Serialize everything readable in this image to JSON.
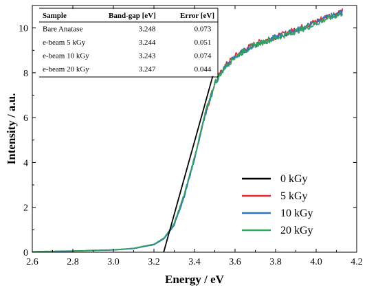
{
  "chart_data": {
    "type": "line",
    "xlabel": "Energy / eV",
    "ylabel": "Intensity / a.u.",
    "xlim": [
      2.6,
      4.2
    ],
    "ylim": [
      0,
      11
    ],
    "x_ticks": [
      2.6,
      2.8,
      3.0,
      3.2,
      3.4,
      3.6,
      3.8,
      4.0,
      4.2
    ],
    "x_tick_labels": [
      "2.6",
      "2.8",
      "3.0",
      "3.2",
      "3.4",
      "3.6",
      "3.8",
      "4.0",
      "4.2"
    ],
    "y_ticks": [
      0,
      2,
      4,
      6,
      8,
      10
    ],
    "y_tick_labels": [
      "0",
      "2",
      "4",
      "6",
      "8",
      "10"
    ],
    "grid": false,
    "legend_position": "bottom-right",
    "series": [
      {
        "name": "0 kGy",
        "color": "#000000",
        "style": "fit-line",
        "points": [
          [
            3.248,
            0
          ],
          [
            3.49,
            7.85
          ]
        ]
      },
      {
        "name": "5 kGy",
        "color": "#e8262b",
        "style": "spectrum",
        "points": [
          [
            2.6,
            0.02
          ],
          [
            2.8,
            0.05
          ],
          [
            3.0,
            0.1
          ],
          [
            3.1,
            0.17
          ],
          [
            3.2,
            0.35
          ],
          [
            3.25,
            0.62
          ],
          [
            3.3,
            1.25
          ],
          [
            3.35,
            2.55
          ],
          [
            3.4,
            4.2
          ],
          [
            3.45,
            6.05
          ],
          [
            3.5,
            7.55
          ],
          [
            3.55,
            8.3
          ],
          [
            3.6,
            8.75
          ],
          [
            3.65,
            9.05
          ],
          [
            3.7,
            9.3
          ],
          [
            3.75,
            9.45
          ],
          [
            3.8,
            9.6
          ],
          [
            3.85,
            9.75
          ],
          [
            3.9,
            9.95
          ],
          [
            3.95,
            10.1
          ],
          [
            4.0,
            10.3
          ],
          [
            4.05,
            10.5
          ],
          [
            4.1,
            10.65
          ],
          [
            4.13,
            10.75
          ]
        ]
      },
      {
        "name": "10 kGy",
        "color": "#2a73c9",
        "style": "spectrum",
        "points": [
          [
            2.6,
            0.02
          ],
          [
            2.8,
            0.05
          ],
          [
            3.0,
            0.1
          ],
          [
            3.1,
            0.16
          ],
          [
            3.2,
            0.33
          ],
          [
            3.25,
            0.6
          ],
          [
            3.3,
            1.2
          ],
          [
            3.35,
            2.5
          ],
          [
            3.4,
            4.15
          ],
          [
            3.45,
            6.0
          ],
          [
            3.5,
            7.5
          ],
          [
            3.55,
            8.25
          ],
          [
            3.6,
            8.7
          ],
          [
            3.65,
            9.0
          ],
          [
            3.7,
            9.25
          ],
          [
            3.75,
            9.42
          ],
          [
            3.8,
            9.58
          ],
          [
            3.85,
            9.72
          ],
          [
            3.9,
            9.9
          ],
          [
            3.95,
            10.05
          ],
          [
            4.0,
            10.25
          ],
          [
            4.05,
            10.45
          ],
          [
            4.1,
            10.6
          ],
          [
            4.13,
            10.7
          ]
        ]
      },
      {
        "name": "20 kGy",
        "color": "#2fa55a",
        "style": "spectrum",
        "points": [
          [
            2.6,
            0.03
          ],
          [
            2.8,
            0.06
          ],
          [
            3.0,
            0.11
          ],
          [
            3.1,
            0.18
          ],
          [
            3.2,
            0.36
          ],
          [
            3.25,
            0.64
          ],
          [
            3.3,
            1.28
          ],
          [
            3.35,
            2.6
          ],
          [
            3.4,
            4.25
          ],
          [
            3.45,
            6.1
          ],
          [
            3.5,
            7.55
          ],
          [
            3.55,
            8.25
          ],
          [
            3.6,
            8.7
          ],
          [
            3.65,
            9.0
          ],
          [
            3.7,
            9.25
          ],
          [
            3.75,
            9.4
          ],
          [
            3.8,
            9.55
          ],
          [
            3.85,
            9.7
          ],
          [
            3.9,
            9.85
          ],
          [
            3.95,
            10.0
          ],
          [
            4.0,
            10.2
          ],
          [
            4.05,
            10.4
          ],
          [
            4.1,
            10.55
          ],
          [
            4.13,
            10.65
          ]
        ]
      }
    ],
    "table": {
      "headers": [
        "Sample",
        "Band-gap [eV]",
        "Error [eV]"
      ],
      "rows": [
        [
          "Bare Anatase",
          "3.248",
          "0.073"
        ],
        [
          "e-beam 5 kGy",
          "3.244",
          "0.051"
        ],
        [
          "e-beam 10 kGy",
          "3.243",
          "0.074"
        ],
        [
          "e-beam 20 kGy",
          "3.247",
          "0.044"
        ]
      ]
    }
  }
}
